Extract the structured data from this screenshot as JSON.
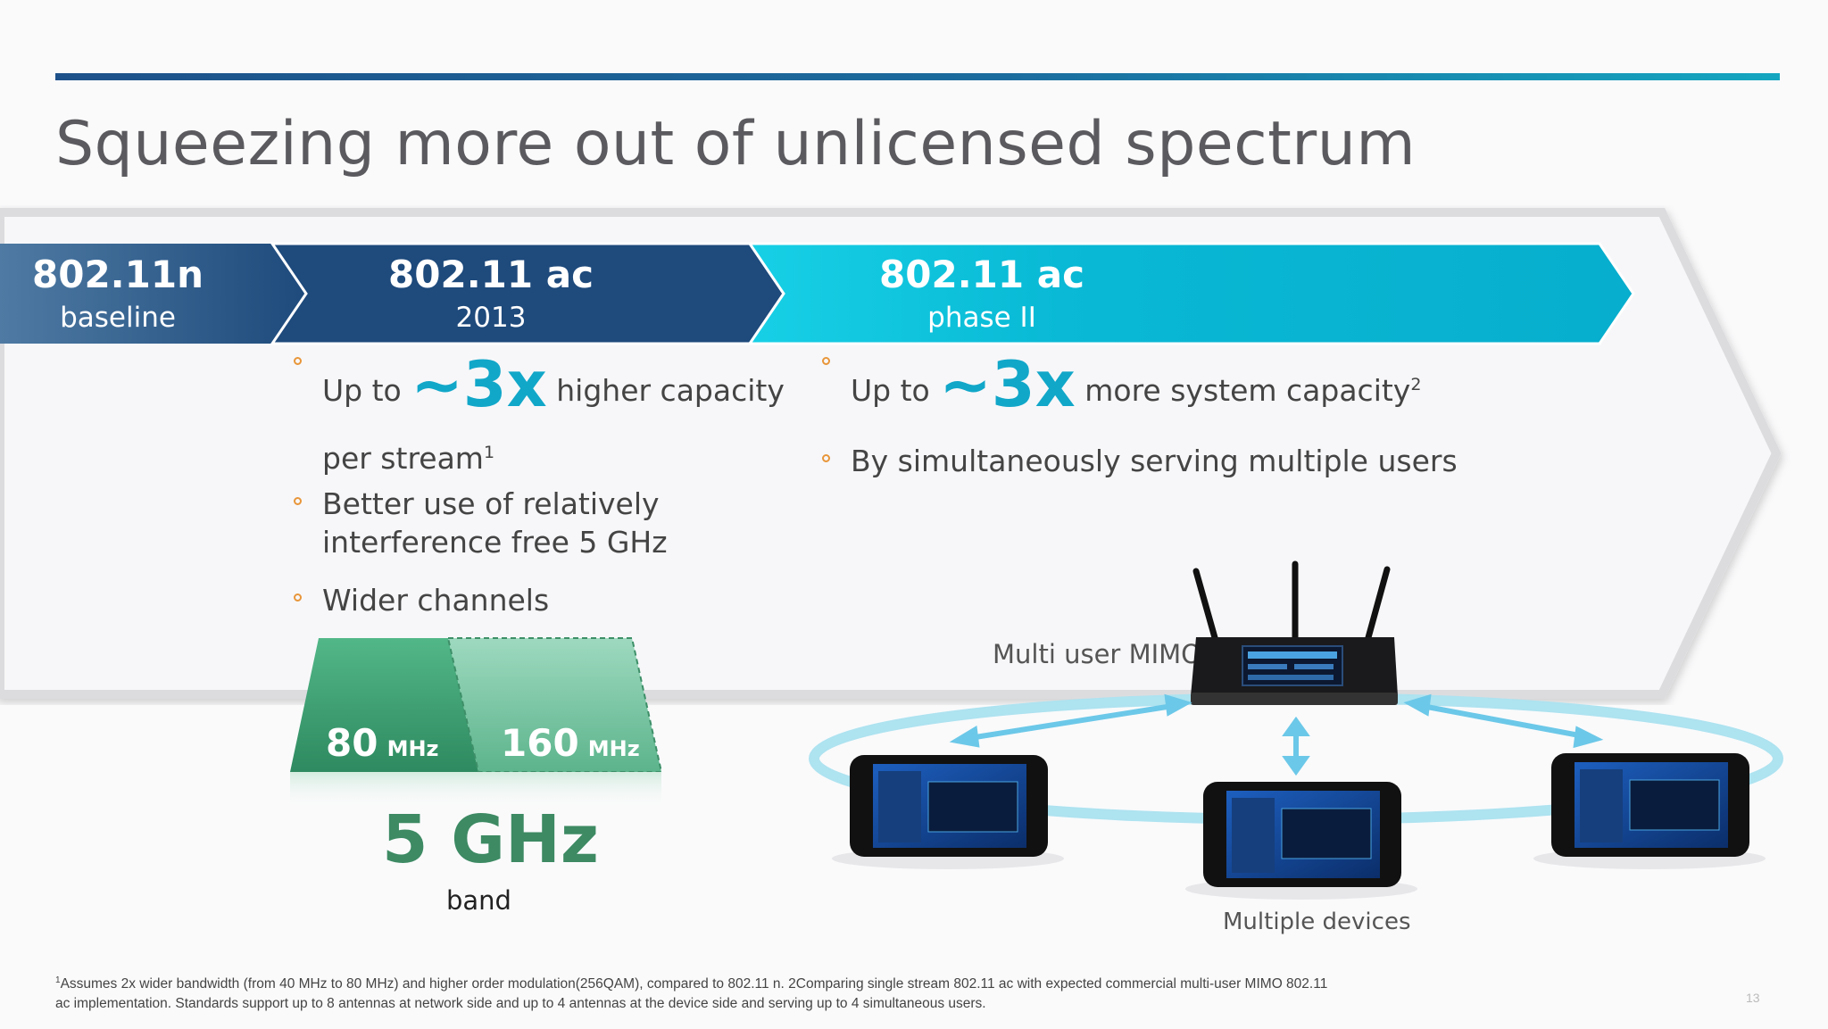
{
  "title": "Squeezing more out of unlicensed spectrum",
  "stages": [
    {
      "name": "802.11n",
      "sub": "baseline"
    },
    {
      "name": "802.11 ac",
      "sub": "2013"
    },
    {
      "name": "802.11 ac",
      "sub": "phase II"
    }
  ],
  "left_bullets": {
    "b1_pre": "Up to",
    "b1_big": "~3x",
    "b1_post": "higher capacity",
    "b1_line2": "per stream",
    "b1_sup": "1",
    "b2_line1": "Better use of relatively",
    "b2_line2": "interference free 5 GHz",
    "b3": "Wider channels"
  },
  "right_bullets": {
    "b1_pre": "Up to",
    "b1_big": "~3x",
    "b1_post": "more system capacity",
    "b1_sup": "2",
    "b2": "By simultaneously serving multiple users"
  },
  "channels": {
    "left_num": "80",
    "left_unit": "MHz",
    "right_num": "160",
    "right_unit": "MHz",
    "band_big": "5 GHz",
    "band_small": "band"
  },
  "mimo_label": "Multi user MIMO",
  "devices_label": "Multiple devices",
  "footnote_sup": "1",
  "footnote_line1": "Assumes 2x wider bandwidth (from 40 MHz to 80 MHz) and higher order modulation(256QAM), compared to 802.11 n. 2Comparing single stream 802.11 ac with expected commercial multi-user MIMO 802.11",
  "footnote_line2": "ac implementation. Standards support up to 8 antennas at network side and up to 4 antennas at the device side and serving up to 4  simultaneous users.",
  "page_number": "13",
  "colors": {
    "accent": "#11a7c9",
    "navy": "#1d4a7e",
    "green": "#3f9c74",
    "bullet": "#e8963a"
  }
}
